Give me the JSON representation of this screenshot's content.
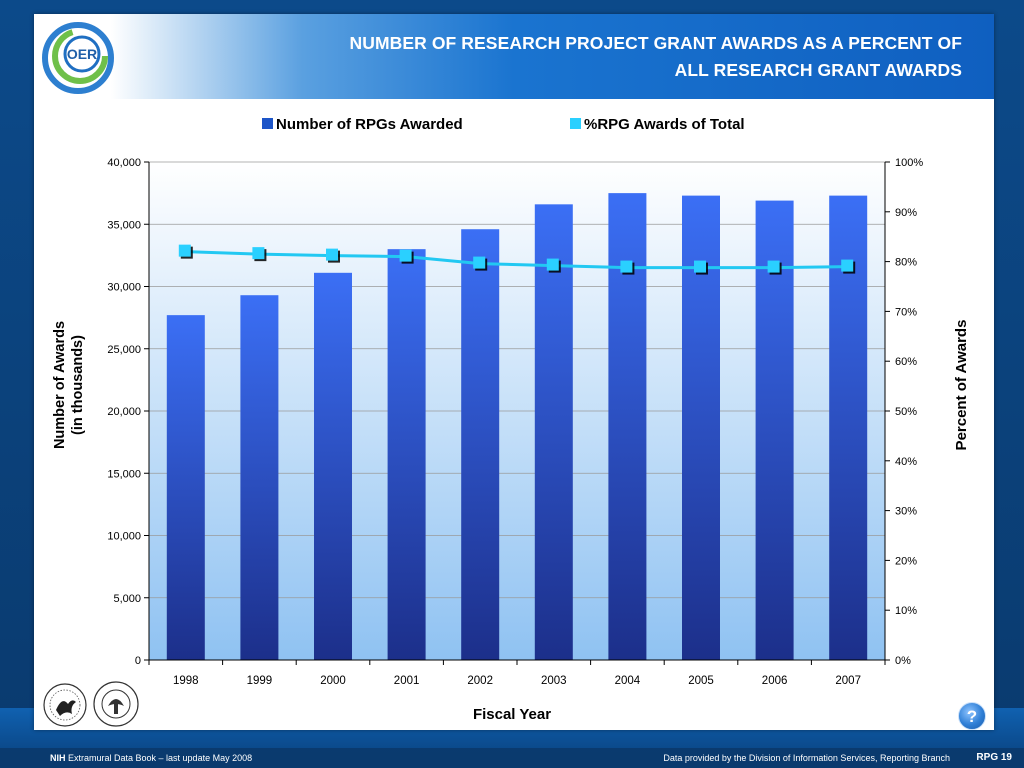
{
  "header": {
    "title_line1": "NUMBER OF RESEARCH PROJECT GRANT AWARDS AS A PERCENT OF",
    "title_line2": "ALL RESEARCH GRANT AWARDS",
    "logo_text": "OER"
  },
  "footer": {
    "left_bold": "NIH",
    "left_text": " Extramural Data Book – last update May 2008",
    "right_text": "Data provided by the Division of Information Services, Reporting Branch",
    "page_label": "RPG 19"
  },
  "help_label": "?",
  "colors": {
    "bar_top": "#3b6ff5",
    "bar_bottom": "#1c2f8a",
    "line": "#22c8f2",
    "marker": "#2ad0ff",
    "plot_bg_top": "#ffffff",
    "plot_bg_bottom": "#8fc2f2",
    "grid": "#9a9a9a"
  },
  "icons": {
    "logo": "oer-swirl-logo",
    "hhs": "hhs-eagle-seal",
    "nih": "nih-seal",
    "help": "help-icon"
  },
  "chart_data": {
    "type": "bar",
    "categories": [
      "1998",
      "1999",
      "2000",
      "2001",
      "2002",
      "2003",
      "2004",
      "2005",
      "2006",
      "2007"
    ],
    "series": [
      {
        "name": "Number of RPGs Awarded",
        "type": "bar",
        "axis": "left",
        "values": [
          27700,
          29300,
          31100,
          33000,
          34600,
          36600,
          37500,
          37300,
          36900,
          37300
        ]
      },
      {
        "name": "%RPG Awards of Total",
        "type": "line",
        "axis": "right",
        "values": [
          82,
          81.5,
          81.2,
          81,
          79.6,
          79.2,
          78.8,
          78.8,
          78.8,
          79
        ]
      }
    ],
    "xlabel": "Fiscal Year",
    "ylabel_line1": "Number of Awards",
    "ylabel_line2": "(in thousands)",
    "y2label": "Percent of Awards",
    "ylim": [
      0,
      40000
    ],
    "y2lim": [
      0,
      100
    ],
    "yticks": [
      "0",
      "5,000",
      "10,000",
      "15,000",
      "20,000",
      "25,000",
      "30,000",
      "35,000",
      "40,000"
    ],
    "y2ticks": [
      "0%",
      "10%",
      "20%",
      "30%",
      "40%",
      "50%",
      "60%",
      "70%",
      "80%",
      "90%",
      "100%"
    ],
    "grid": true,
    "legend_position": "top-center"
  }
}
